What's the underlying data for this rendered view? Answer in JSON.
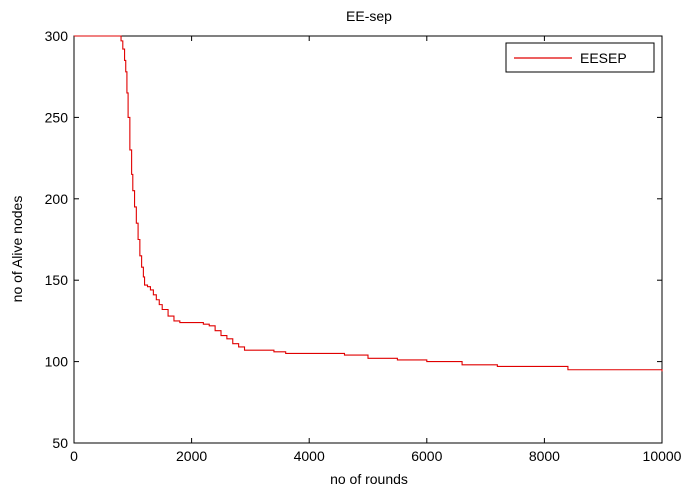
{
  "chart_data": {
    "type": "line",
    "title": "EE-sep",
    "xlabel": "no of rounds",
    "ylabel": "no of Alive nodes",
    "xlim": [
      0,
      10000
    ],
    "ylim": [
      50,
      300
    ],
    "xticks": [
      0,
      2000,
      4000,
      6000,
      8000,
      10000
    ],
    "yticks": [
      50,
      100,
      150,
      200,
      250,
      300
    ],
    "grid": false,
    "legend": "top-right",
    "series": [
      {
        "name": "EESEP",
        "color": "#e00000",
        "step": true,
        "x": [
          0,
          780,
          800,
          830,
          860,
          880,
          900,
          920,
          950,
          980,
          1000,
          1030,
          1060,
          1090,
          1120,
          1150,
          1180,
          1200,
          1250,
          1300,
          1350,
          1400,
          1450,
          1500,
          1600,
          1700,
          1800,
          2000,
          2200,
          2300,
          2400,
          2500,
          2600,
          2700,
          2800,
          2900,
          3200,
          3400,
          3600,
          4000,
          4600,
          5000,
          5500,
          6000,
          6600,
          7200,
          8400,
          10000
        ],
        "y": [
          300,
          300,
          297,
          292,
          285,
          278,
          265,
          250,
          230,
          215,
          205,
          195,
          185,
          175,
          165,
          158,
          152,
          147,
          146,
          144,
          141,
          138,
          135,
          132,
          128,
          125,
          124,
          124,
          123,
          122,
          119,
          116,
          114,
          111,
          109,
          107,
          107,
          106,
          105,
          105,
          104,
          102,
          101,
          100,
          98,
          97,
          95,
          94
        ]
      }
    ]
  }
}
